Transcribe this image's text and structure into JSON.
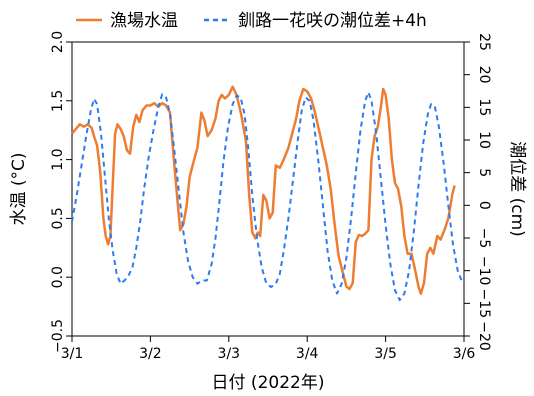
{
  "chart_data": {
    "type": "line",
    "xlabel": "日付 (2022年)",
    "ylabel_left": "水温 (°C)",
    "ylabel_right": "潮位差 (cm)",
    "x_ticks": [
      "3/1",
      "3/2",
      "3/3",
      "3/4",
      "3/5",
      "3/6"
    ],
    "xlim": [
      0,
      5
    ],
    "ylim_left": [
      -0.5,
      2.0
    ],
    "y_ticks_left": [
      "−0.5",
      "0.0",
      "0.5",
      "1.0",
      "1.5",
      "2.0"
    ],
    "ylim_right": [
      -20,
      25
    ],
    "y_ticks_right": [
      "−20",
      "−15",
      "−10",
      "−5",
      "0",
      "5",
      "10",
      "15",
      "20",
      "25"
    ],
    "grid": false,
    "legend_position": "top",
    "series": [
      {
        "name": "漁場水温",
        "color": "#ED7D31",
        "style": "solid",
        "axis": "left",
        "points": [
          [
            0.0,
            1.22
          ],
          [
            0.05,
            1.26
          ],
          [
            0.1,
            1.3
          ],
          [
            0.15,
            1.28
          ],
          [
            0.2,
            1.3
          ],
          [
            0.25,
            1.27
          ],
          [
            0.28,
            1.2
          ],
          [
            0.32,
            1.12
          ],
          [
            0.36,
            0.9
          ],
          [
            0.4,
            0.5
          ],
          [
            0.43,
            0.35
          ],
          [
            0.46,
            0.28
          ],
          [
            0.49,
            0.35
          ],
          [
            0.52,
            0.8
          ],
          [
            0.55,
            1.22
          ],
          [
            0.58,
            1.3
          ],
          [
            0.62,
            1.26
          ],
          [
            0.66,
            1.2
          ],
          [
            0.7,
            1.08
          ],
          [
            0.74,
            1.05
          ],
          [
            0.78,
            1.28
          ],
          [
            0.82,
            1.38
          ],
          [
            0.86,
            1.32
          ],
          [
            0.9,
            1.42
          ],
          [
            0.95,
            1.46
          ],
          [
            1.0,
            1.46
          ],
          [
            1.05,
            1.48
          ],
          [
            1.1,
            1.45
          ],
          [
            1.15,
            1.48
          ],
          [
            1.2,
            1.46
          ],
          [
            1.25,
            1.4
          ],
          [
            1.3,
            1.0
          ],
          [
            1.35,
            0.62
          ],
          [
            1.38,
            0.4
          ],
          [
            1.42,
            0.45
          ],
          [
            1.46,
            0.6
          ],
          [
            1.5,
            0.85
          ],
          [
            1.55,
            0.98
          ],
          [
            1.6,
            1.1
          ],
          [
            1.65,
            1.4
          ],
          [
            1.69,
            1.33
          ],
          [
            1.73,
            1.2
          ],
          [
            1.78,
            1.25
          ],
          [
            1.83,
            1.35
          ],
          [
            1.87,
            1.5
          ],
          [
            1.91,
            1.55
          ],
          [
            1.95,
            1.52
          ],
          [
            2.0,
            1.55
          ],
          [
            2.05,
            1.62
          ],
          [
            2.1,
            1.55
          ],
          [
            2.16,
            1.38
          ],
          [
            2.22,
            1.15
          ],
          [
            2.26,
            0.7
          ],
          [
            2.3,
            0.38
          ],
          [
            2.34,
            0.33
          ],
          [
            2.37,
            0.38
          ],
          [
            2.4,
            0.35
          ],
          [
            2.44,
            0.7
          ],
          [
            2.48,
            0.65
          ],
          [
            2.52,
            0.5
          ],
          [
            2.56,
            0.55
          ],
          [
            2.6,
            0.95
          ],
          [
            2.65,
            0.93
          ],
          [
            2.7,
            1.0
          ],
          [
            2.76,
            1.1
          ],
          [
            2.82,
            1.25
          ],
          [
            2.86,
            1.35
          ],
          [
            2.9,
            1.5
          ],
          [
            2.95,
            1.6
          ],
          [
            3.0,
            1.58
          ],
          [
            3.05,
            1.52
          ],
          [
            3.1,
            1.4
          ],
          [
            3.15,
            1.25
          ],
          [
            3.2,
            1.1
          ],
          [
            3.25,
            0.95
          ],
          [
            3.3,
            0.75
          ],
          [
            3.35,
            0.45
          ],
          [
            3.4,
            0.18
          ],
          [
            3.45,
            0.05
          ],
          [
            3.5,
            -0.08
          ],
          [
            3.54,
            -0.1
          ],
          [
            3.58,
            -0.05
          ],
          [
            3.62,
            0.3
          ],
          [
            3.66,
            0.36
          ],
          [
            3.7,
            0.35
          ],
          [
            3.74,
            0.37
          ],
          [
            3.78,
            0.4
          ],
          [
            3.82,
            1.0
          ],
          [
            3.86,
            1.2
          ],
          [
            3.9,
            1.28
          ],
          [
            3.94,
            1.45
          ],
          [
            3.97,
            1.6
          ],
          [
            4.0,
            1.55
          ],
          [
            4.04,
            1.35
          ],
          [
            4.08,
            1.0
          ],
          [
            4.12,
            0.8
          ],
          [
            4.16,
            0.75
          ],
          [
            4.2,
            0.6
          ],
          [
            4.24,
            0.35
          ],
          [
            4.28,
            0.2
          ],
          [
            4.33,
            0.2
          ],
          [
            4.38,
            0.05
          ],
          [
            4.42,
            -0.08
          ],
          [
            4.45,
            -0.14
          ],
          [
            4.49,
            -0.05
          ],
          [
            4.53,
            0.2
          ],
          [
            4.57,
            0.25
          ],
          [
            4.61,
            0.2
          ],
          [
            4.66,
            0.35
          ],
          [
            4.7,
            0.32
          ],
          [
            4.75,
            0.4
          ],
          [
            4.8,
            0.5
          ],
          [
            4.85,
            0.7
          ],
          [
            4.88,
            0.78
          ]
        ]
      },
      {
        "name": "釧路一花咲の潮位差+4h",
        "color": "#2B7BF2",
        "style": "dashed",
        "axis": "right",
        "points": [
          [
            0.0,
            -2.5
          ],
          [
            0.06,
            1.5
          ],
          [
            0.12,
            6.0
          ],
          [
            0.18,
            10.5
          ],
          [
            0.24,
            14.5
          ],
          [
            0.28,
            16.3
          ],
          [
            0.32,
            15.5
          ],
          [
            0.37,
            11.0
          ],
          [
            0.42,
            4.5
          ],
          [
            0.47,
            -2.0
          ],
          [
            0.52,
            -7.0
          ],
          [
            0.57,
            -10.5
          ],
          [
            0.62,
            -12.0
          ],
          [
            0.67,
            -11.5
          ],
          [
            0.72,
            -10.8
          ],
          [
            0.77,
            -9.5
          ],
          [
            0.82,
            -6.5
          ],
          [
            0.87,
            -2.5
          ],
          [
            0.92,
            2.5
          ],
          [
            0.98,
            7.5
          ],
          [
            1.04,
            11.5
          ],
          [
            1.1,
            15.0
          ],
          [
            1.15,
            17.0
          ],
          [
            1.2,
            16.5
          ],
          [
            1.25,
            14.0
          ],
          [
            1.3,
            9.0
          ],
          [
            1.36,
            2.5
          ],
          [
            1.42,
            -4.0
          ],
          [
            1.48,
            -8.5
          ],
          [
            1.54,
            -11.0
          ],
          [
            1.6,
            -12.0
          ],
          [
            1.66,
            -11.5
          ],
          [
            1.72,
            -11.5
          ],
          [
            1.78,
            -9.0
          ],
          [
            1.83,
            -5.0
          ],
          [
            1.88,
            0.5
          ],
          [
            1.93,
            6.5
          ],
          [
            1.99,
            12.0
          ],
          [
            2.05,
            15.5
          ],
          [
            2.1,
            16.8
          ],
          [
            2.15,
            16.5
          ],
          [
            2.2,
            14.0
          ],
          [
            2.25,
            8.5
          ],
          [
            2.3,
            1.5
          ],
          [
            2.36,
            -5.0
          ],
          [
            2.42,
            -9.5
          ],
          [
            2.48,
            -12.0
          ],
          [
            2.54,
            -12.5
          ],
          [
            2.6,
            -12.0
          ],
          [
            2.65,
            -10.5
          ],
          [
            2.7,
            -7.0
          ],
          [
            2.76,
            -2.0
          ],
          [
            2.82,
            4.0
          ],
          [
            2.88,
            10.0
          ],
          [
            2.93,
            14.5
          ],
          [
            2.98,
            16.5
          ],
          [
            3.03,
            16.0
          ],
          [
            3.08,
            13.0
          ],
          [
            3.14,
            7.0
          ],
          [
            3.2,
            0.0
          ],
          [
            3.26,
            -7.0
          ],
          [
            3.32,
            -11.5
          ],
          [
            3.38,
            -13.5
          ],
          [
            3.44,
            -12.0
          ],
          [
            3.5,
            -8.0
          ],
          [
            3.56,
            -2.0
          ],
          [
            3.62,
            5.0
          ],
          [
            3.68,
            11.5
          ],
          [
            3.74,
            16.0
          ],
          [
            3.78,
            17.3
          ],
          [
            3.82,
            16.0
          ],
          [
            3.88,
            11.0
          ],
          [
            3.94,
            4.0
          ],
          [
            4.0,
            -3.0
          ],
          [
            4.06,
            -9.0
          ],
          [
            4.12,
            -13.0
          ],
          [
            4.18,
            -14.5
          ],
          [
            4.24,
            -13.5
          ],
          [
            4.3,
            -10.0
          ],
          [
            4.36,
            -4.0
          ],
          [
            4.42,
            3.0
          ],
          [
            4.48,
            9.5
          ],
          [
            4.54,
            14.0
          ],
          [
            4.58,
            15.5
          ],
          [
            4.63,
            15.0
          ],
          [
            4.68,
            12.0
          ],
          [
            4.74,
            6.5
          ],
          [
            4.8,
            0.0
          ],
          [
            4.86,
            -6.0
          ],
          [
            4.92,
            -10.0
          ],
          [
            4.97,
            -11.5
          ],
          [
            5.0,
            -11.8
          ]
        ]
      }
    ]
  }
}
